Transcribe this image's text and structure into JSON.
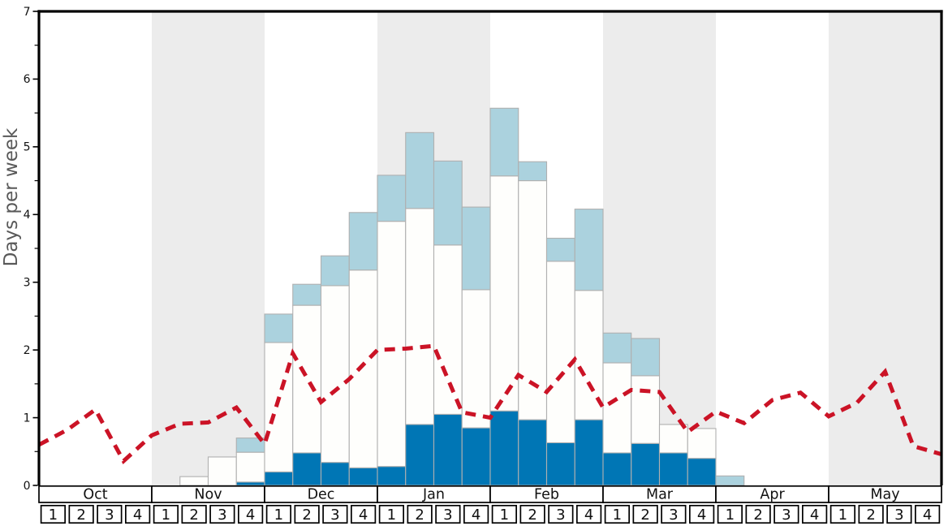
{
  "chart_data": {
    "type": "bar",
    "ylabel": "Days per week",
    "ylim": [
      0,
      7
    ],
    "y_tick_labels": [
      "0",
      "1",
      "2",
      "3",
      "4",
      "5",
      "6",
      "7"
    ],
    "y_minor_tick_step": 0.5,
    "grid": "off",
    "legend": "none",
    "months": [
      {
        "label": "Oct",
        "shaded": false
      },
      {
        "label": "Nov",
        "shaded": true
      },
      {
        "label": "Dec",
        "shaded": false
      },
      {
        "label": "Jan",
        "shaded": true
      },
      {
        "label": "Feb",
        "shaded": false
      },
      {
        "label": "Mar",
        "shaded": true
      },
      {
        "label": "Apr",
        "shaded": false
      },
      {
        "label": "May",
        "shaded": true
      }
    ],
    "week_labels_per_month": [
      "1",
      "2",
      "3",
      "4"
    ],
    "weeks_total": 32,
    "bar_stack_series": [
      {
        "name": "dark-blue-bottom-segment",
        "color": "#0076b5",
        "values": [
          0,
          0,
          0,
          0,
          0,
          0,
          0,
          0.05,
          0.2,
          0.48,
          0.34,
          0.26,
          0.28,
          0.9,
          1.05,
          0.85,
          1.1,
          0.97,
          0.63,
          0.97,
          0.48,
          0.62,
          0.48,
          0.4,
          0,
          0,
          0,
          0,
          0,
          0,
          0,
          0
        ]
      },
      {
        "name": "white-middle-segment",
        "color": "#fefefc",
        "values": [
          0,
          0,
          0,
          0,
          0,
          0.13,
          0.42,
          0.44,
          1.91,
          2.18,
          2.61,
          2.92,
          3.62,
          3.19,
          2.5,
          2.04,
          3.47,
          3.53,
          2.68,
          1.91,
          1.33,
          1.0,
          0.42,
          0.44,
          0,
          0,
          0,
          0,
          0,
          0,
          0,
          0
        ]
      },
      {
        "name": "light-blue-top-segment",
        "color": "#abd2de",
        "values": [
          0,
          0,
          0,
          0,
          0,
          0,
          0,
          0.21,
          0.42,
          0.31,
          0.44,
          0.85,
          0.68,
          1.12,
          1.24,
          1.22,
          1.0,
          0.28,
          0.34,
          1.2,
          0.44,
          0.55,
          0,
          0,
          0.14,
          0,
          0,
          0,
          0,
          0,
          0,
          0
        ]
      }
    ],
    "line_series": {
      "name": "red-dashed-trend-line",
      "color": "#cb1326",
      "style": "dashed",
      "points_at": "week-boundaries",
      "values": [
        0.6,
        0.82,
        1.12,
        0.36,
        0.74,
        0.91,
        0.93,
        1.15,
        0.61,
        1.95,
        1.23,
        1.57,
        2.0,
        2.02,
        2.06,
        1.08,
        1.0,
        1.63,
        1.38,
        1.86,
        1.15,
        1.41,
        1.38,
        0.79,
        1.09,
        0.92,
        1.26,
        1.37,
        1.02,
        1.22,
        1.68,
        0.58,
        0.46
      ]
    },
    "colors": {
      "shaded_month_band": "#ececec",
      "plain_month_band": "#ffffff",
      "bar_border": "#b0b0b0",
      "axis_spine": "#000000",
      "table_border": "#000000",
      "table_cell_fill": "#ffffff",
      "tick_label_color": "#111111",
      "y_axis_label_color": "#595959"
    }
  }
}
